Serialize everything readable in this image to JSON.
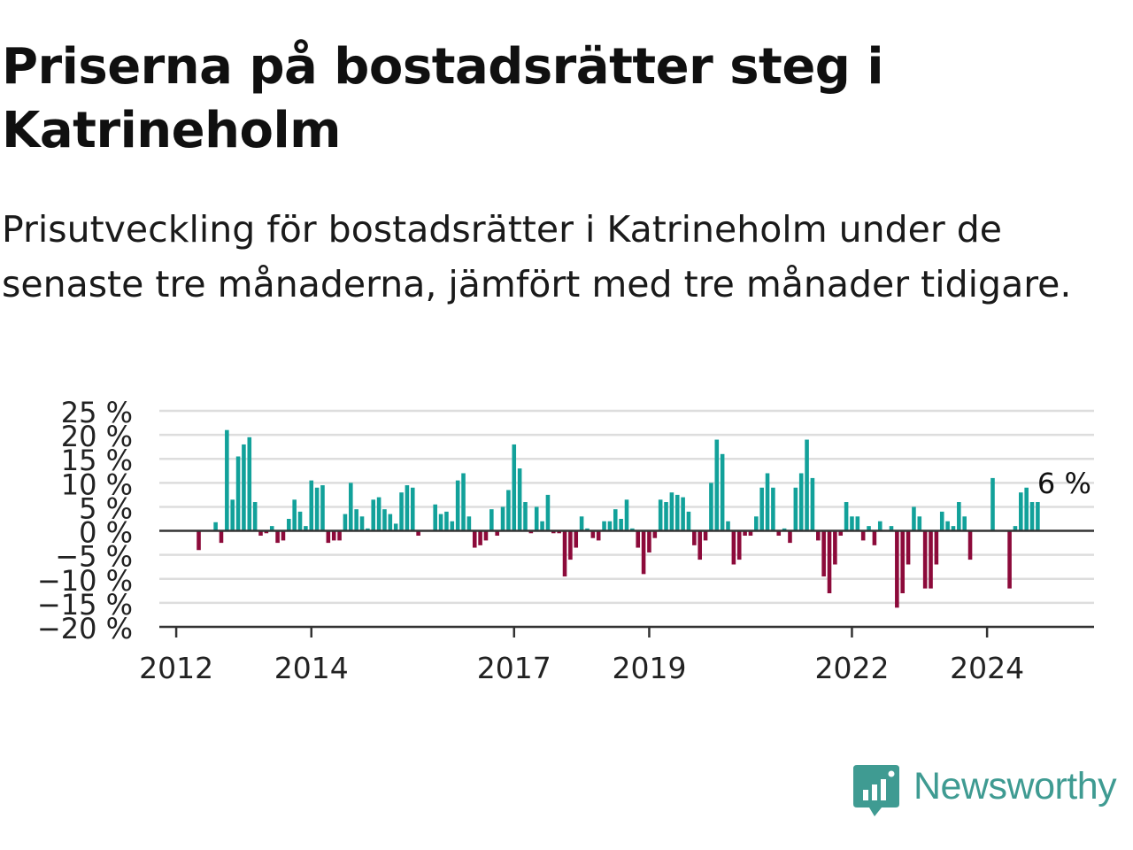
{
  "title": "Priserna på bostadsrätter steg i Katrineholm",
  "subtitle": "Prisutveckling för bostadsrätter i Katrineholm under de senaste tre månaderna, jämfört med tre månader tidigare.",
  "brand": {
    "name": "Newsworthy",
    "color": "#3f9b92",
    "logo_icon": "chart-bubble-icon"
  },
  "colors": {
    "positive": "#12a19a",
    "negative": "#8c0a3a",
    "grid": "#dddddd",
    "zero_line": "#333333",
    "text": "#222222"
  },
  "chart_data": {
    "type": "bar",
    "y_axis": {
      "ticks": [
        25,
        20,
        15,
        10,
        5,
        0,
        -5,
        -10,
        -15,
        -20
      ],
      "tick_labels": [
        "25 %",
        "20 %",
        "15 %",
        "10 %",
        "5 %",
        "0 %",
        "−5 %",
        "−10 %",
        "−15 %",
        "−20 %"
      ],
      "range": [
        -20,
        25
      ],
      "gridlines": true
    },
    "x_axis": {
      "ticks": [
        "2012-01",
        "2014-01",
        "2017-01",
        "2019-01",
        "2022-01",
        "2024-01"
      ],
      "tick_labels": [
        "2012",
        "2014",
        "2017",
        "2019",
        "2022",
        "2024"
      ],
      "range": [
        "2011-10",
        "2025-08"
      ]
    },
    "annotation": {
      "text": "6 %",
      "at": "2024-10"
    },
    "series": [
      {
        "x": [
          "2012-05",
          "2012-06",
          "2012-07",
          "2012-08",
          "2012-09",
          "2012-10",
          "2012-11",
          "2012-12",
          "2013-01",
          "2013-02",
          "2013-03",
          "2013-04",
          "2013-05",
          "2013-06",
          "2013-07",
          "2013-08",
          "2013-09",
          "2013-10",
          "2013-11",
          "2013-12",
          "2014-01",
          "2014-02",
          "2014-03",
          "2014-04",
          "2014-05",
          "2014-06",
          "2014-07",
          "2014-08",
          "2014-09",
          "2014-10",
          "2014-11",
          "2014-12",
          "2015-01",
          "2015-02",
          "2015-03",
          "2015-04",
          "2015-05",
          "2015-06",
          "2015-07",
          "2015-08",
          "2015-09",
          "2015-10",
          "2015-11",
          "2015-12",
          "2016-01",
          "2016-02",
          "2016-03",
          "2016-04",
          "2016-05",
          "2016-06",
          "2016-07",
          "2016-08",
          "2016-09",
          "2016-10",
          "2016-11",
          "2016-12",
          "2017-01",
          "2017-02",
          "2017-03",
          "2017-04",
          "2017-05",
          "2017-06",
          "2017-07",
          "2017-08",
          "2017-09",
          "2017-10",
          "2017-11",
          "2017-12",
          "2018-01",
          "2018-02",
          "2018-03",
          "2018-04",
          "2018-05",
          "2018-06",
          "2018-07",
          "2018-08",
          "2018-09",
          "2018-10",
          "2018-11",
          "2018-12",
          "2019-01",
          "2019-02",
          "2019-03",
          "2019-04",
          "2019-05",
          "2019-06",
          "2019-07",
          "2019-08",
          "2019-09",
          "2019-10",
          "2019-11",
          "2019-12",
          "2020-01",
          "2020-02",
          "2020-03",
          "2020-04",
          "2020-05",
          "2020-06",
          "2020-07",
          "2020-08",
          "2020-09",
          "2020-10",
          "2020-11",
          "2020-12",
          "2021-01",
          "2021-02",
          "2021-03",
          "2021-04",
          "2021-05",
          "2021-06",
          "2021-07",
          "2021-08",
          "2021-09",
          "2021-10",
          "2021-11",
          "2021-12",
          "2022-01",
          "2022-02",
          "2022-03",
          "2022-04",
          "2022-05",
          "2022-06",
          "2022-07",
          "2022-08",
          "2022-09",
          "2022-10",
          "2022-11",
          "2022-12",
          "2023-01",
          "2023-02",
          "2023-03",
          "2023-04",
          "2023-05",
          "2023-06",
          "2023-07",
          "2023-08",
          "2023-09",
          "2023-10",
          "2023-11",
          "2023-12",
          "2024-01",
          "2024-02",
          "2024-03",
          "2024-04",
          "2024-05",
          "2024-06",
          "2024-07",
          "2024-08",
          "2024-09",
          "2024-10"
        ],
        "values": [
          -4.0,
          0,
          0,
          1.8,
          -2.5,
          21.0,
          6.5,
          15.5,
          18.0,
          19.5,
          6.0,
          -1.0,
          -0.5,
          1.0,
          -2.5,
          -2.0,
          2.5,
          6.5,
          4.0,
          1.0,
          10.5,
          9.0,
          9.5,
          -2.5,
          -2.0,
          -2.0,
          3.5,
          10.0,
          4.5,
          3.0,
          0.5,
          6.5,
          7.0,
          4.5,
          3.5,
          1.5,
          8.0,
          9.5,
          9.0,
          -1.0,
          0,
          0,
          5.5,
          3.5,
          4.0,
          2.0,
          10.5,
          12.0,
          3.0,
          -3.5,
          -3.0,
          -2.0,
          4.5,
          -1.0,
          5.0,
          8.5,
          18.0,
          13.0,
          6.0,
          -0.5,
          5.0,
          2.0,
          7.5,
          -0.5,
          -0.5,
          -9.5,
          -6.0,
          -3.5,
          3.0,
          0.5,
          -1.5,
          -2.0,
          2.0,
          2.0,
          4.5,
          2.5,
          6.5,
          0.5,
          -3.5,
          -9.0,
          -4.5,
          -1.5,
          6.5,
          6.0,
          8.0,
          7.5,
          7.0,
          4.0,
          -3.0,
          -6.0,
          -2.0,
          10.0,
          19.0,
          16.0,
          2.0,
          -7.0,
          -6.0,
          -1.0,
          -1.0,
          3.0,
          9.0,
          12.0,
          9.0,
          -1.0,
          0.5,
          -2.5,
          9.0,
          12.0,
          19.0,
          11.0,
          -2.0,
          -9.5,
          -13.0,
          -7.0,
          -1.0,
          6.0,
          3.0,
          3.0,
          -2.0,
          1.0,
          -3.0,
          2.0,
          0,
          1.0,
          -16.0,
          -13.0,
          -7.0,
          5.0,
          3.0,
          -12.0,
          -12.0,
          -7.0,
          4.0,
          2.0,
          1.0,
          6.0,
          3.0,
          -6.0,
          0,
          0,
          0,
          11.0,
          0,
          0,
          -12.0,
          1.0,
          8.0,
          9.0,
          6.0,
          6.0
        ]
      }
    ]
  }
}
